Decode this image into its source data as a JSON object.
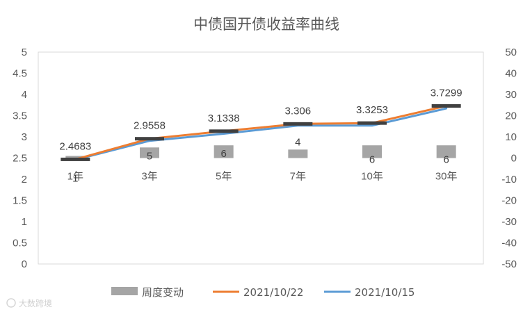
{
  "chart_data": {
    "type": "bar+line",
    "title": "中债国开债收益率曲线",
    "categories": [
      "1年",
      "3年",
      "5年",
      "7年",
      "10年",
      "30年"
    ],
    "left_axis": {
      "min": 0,
      "max": 5,
      "step": 0.5,
      "ticks": [
        "0",
        "0.5",
        "1",
        "1.5",
        "2",
        "2.5",
        "3",
        "3.5",
        "4",
        "4.5",
        "5"
      ]
    },
    "right_axis": {
      "min": -50,
      "max": 50,
      "step": 10,
      "ticks": [
        "-50",
        "-40",
        "-30",
        "-20",
        "-10",
        "0",
        "10",
        "20",
        "30",
        "40",
        "50"
      ]
    },
    "series": [
      {
        "name": "周度变动",
        "kind": "bar",
        "axis": "right",
        "color": "#a5a5a5",
        "values": [
          1,
          5,
          6,
          4,
          6,
          6
        ],
        "labels": [
          "1",
          "5",
          "6",
          "4",
          "6",
          "6"
        ]
      },
      {
        "name": "2021/10/22",
        "kind": "line",
        "axis": "left",
        "color": "#ed7d31",
        "values": [
          2.4683,
          2.9558,
          3.1338,
          3.306,
          3.3253,
          3.7299
        ],
        "labels": [
          "2.4683",
          "2.9558",
          "3.1338",
          "3.306",
          "3.3253",
          "3.7299"
        ]
      },
      {
        "name": "2021/10/15",
        "kind": "line",
        "axis": "left",
        "color": "#5b9bd5",
        "values": [
          2.4583,
          2.9058,
          3.0738,
          3.266,
          3.2653,
          3.6699
        ]
      }
    ],
    "legend_position": "bottom",
    "grid": false
  },
  "watermark": "大数跨境"
}
